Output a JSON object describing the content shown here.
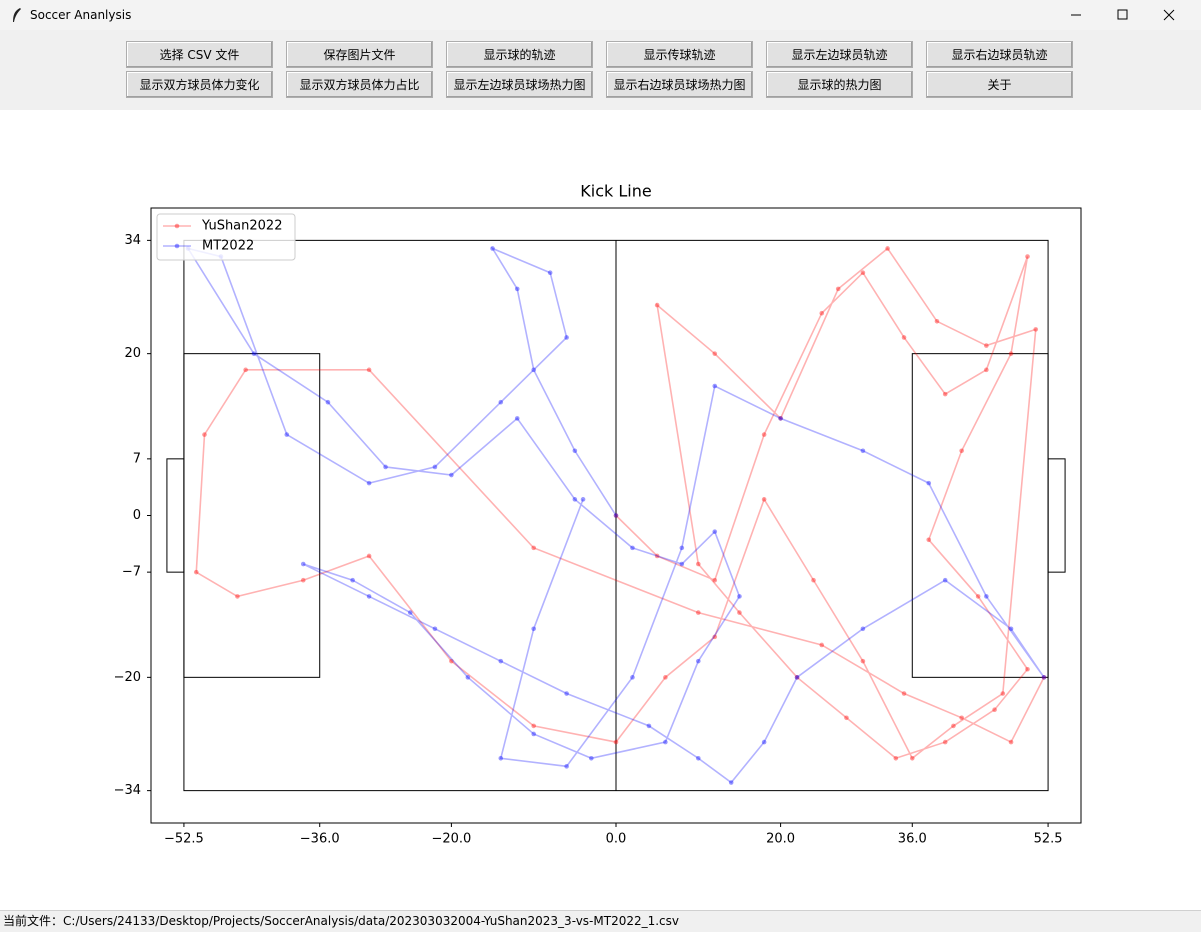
{
  "window": {
    "title": "Soccer Ananlysis"
  },
  "toolbar": {
    "buttons": [
      [
        "选择 CSV 文件",
        "保存图片文件",
        "显示球的轨迹",
        "显示传球轨迹",
        "显示左边球员轨迹",
        "显示右边球员轨迹"
      ],
      [
        "显示双方球员体力变化",
        "显示双方球员体力占比",
        "显示左边球员球场热力图",
        "显示右边球员球场热力图",
        "显示球的热力图",
        "关于"
      ]
    ]
  },
  "chart_data": {
    "type": "line",
    "title": "Kick Line",
    "xlim": [
      -56.5,
      56.5
    ],
    "ylim": [
      -38,
      38
    ],
    "xticks": [
      {
        "value": -52.5,
        "label": "−52.5"
      },
      {
        "value": -36.0,
        "label": "−36.0"
      },
      {
        "value": -20.0,
        "label": "−20.0"
      },
      {
        "value": 0.0,
        "label": "0.0"
      },
      {
        "value": 20.0,
        "label": "20.0"
      },
      {
        "value": 36.0,
        "label": "36.0"
      },
      {
        "value": 52.5,
        "label": "52.5"
      }
    ],
    "yticks": [
      34,
      20,
      7,
      0,
      {
        "value": -7,
        "label": "−7"
      },
      {
        "value": -20,
        "label": "−20"
      },
      {
        "value": -34,
        "label": "−34"
      }
    ],
    "legend": "upper left",
    "series": [
      {
        "name": "YuShan2022",
        "color": "red",
        "x": [
          0,
          5,
          12,
          18,
          25,
          30,
          35,
          40,
          45,
          50,
          48,
          42,
          38,
          44,
          50,
          46,
          40,
          34,
          28,
          22,
          15,
          10,
          5,
          12,
          20,
          27,
          33,
          39,
          45,
          51,
          47,
          41,
          36,
          30,
          24,
          18,
          12,
          6,
          0,
          -10,
          -20,
          -30,
          -38,
          -46,
          -51,
          -50,
          -45,
          -30,
          -10,
          10,
          25,
          35,
          42,
          48,
          52
        ],
        "values": [
          0,
          -5,
          -8,
          10,
          25,
          30,
          22,
          15,
          18,
          32,
          20,
          8,
          -3,
          -10,
          -19,
          -24,
          -28,
          -30,
          -25,
          -20,
          -12,
          -6,
          26,
          20,
          12,
          28,
          33,
          24,
          21,
          23,
          -22,
          -26,
          -30,
          -18,
          -8,
          2,
          -15,
          -20,
          -28,
          -26,
          -18,
          -5,
          -8,
          -10,
          -7,
          10,
          18,
          18,
          -4,
          -12,
          -16,
          -22,
          -25,
          -28,
          -20
        ]
      },
      {
        "name": "MT2022",
        "color": "blue",
        "x": [
          0,
          -5,
          -10,
          -12,
          -15,
          -8,
          -6,
          -14,
          -22,
          -30,
          -40,
          -48,
          -52,
          -44,
          -35,
          -28,
          -20,
          -12,
          -5,
          2,
          8,
          12,
          15,
          10,
          6,
          -3,
          -10,
          -18,
          -25,
          -32,
          -38,
          -30,
          -22,
          -14,
          -6,
          4,
          10,
          14,
          18,
          22,
          30,
          40,
          48,
          52,
          45,
          38,
          30,
          20,
          12,
          8,
          2,
          -6,
          -14,
          -10,
          -4
        ],
        "values": [
          0,
          8,
          18,
          28,
          33,
          30,
          22,
          14,
          6,
          4,
          10,
          32,
          33,
          20,
          14,
          6,
          5,
          12,
          2,
          -4,
          -6,
          -2,
          -10,
          -18,
          -28,
          -30,
          -27,
          -20,
          -12,
          -8,
          -6,
          -10,
          -14,
          -18,
          -22,
          -26,
          -30,
          -33,
          -28,
          -20,
          -14,
          -8,
          -14,
          -20,
          -10,
          4,
          8,
          12,
          16,
          -4,
          -20,
          -31,
          -30,
          -14,
          2
        ]
      }
    ]
  },
  "status": {
    "label": "当前文件：",
    "path": "C:/Users/24133/Desktop/Projects/SoccerAnalysis/data/202303032004-YuShan2023_3-vs-MT2022_1.csv"
  }
}
